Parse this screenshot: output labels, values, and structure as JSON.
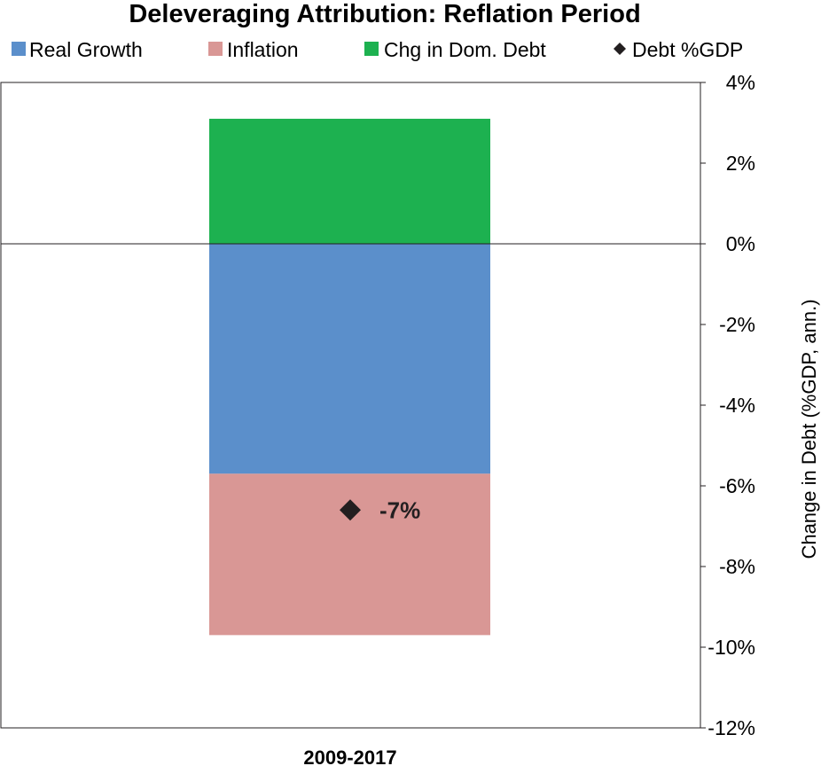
{
  "chart_data": {
    "type": "bar",
    "stacked": true,
    "title": "Deleveraging Attribution: Reflation Period",
    "categories": [
      "2009-2017"
    ],
    "series": [
      {
        "name": "Real Growth",
        "values": [
          -5.7
        ],
        "color": "#5b8fcb"
      },
      {
        "name": "Inflation",
        "values": [
          -4.0
        ],
        "color": "#d99795"
      },
      {
        "name": "Chg in Dom. Debt",
        "values": [
          3.1
        ],
        "color": "#1db150"
      }
    ],
    "markers": {
      "name": "Debt %GDP",
      "values": [
        -6.6
      ],
      "data_label": "-7%",
      "color": "#231f20",
      "symbol": "diamond"
    },
    "ylabel": "Change in Debt (%GDP, ann.)",
    "ylim": [
      -12,
      4
    ],
    "yticks": [
      4,
      2,
      0,
      -2,
      -4,
      -6,
      -8,
      -10,
      -12
    ],
    "ytick_labels": [
      "4%",
      "2%",
      "0%",
      "-2%",
      "-4%",
      "-6%",
      "-8%",
      "-10%",
      "-12%"
    ],
    "y_axis_side": "right",
    "grid": false,
    "legend_position": "top"
  }
}
